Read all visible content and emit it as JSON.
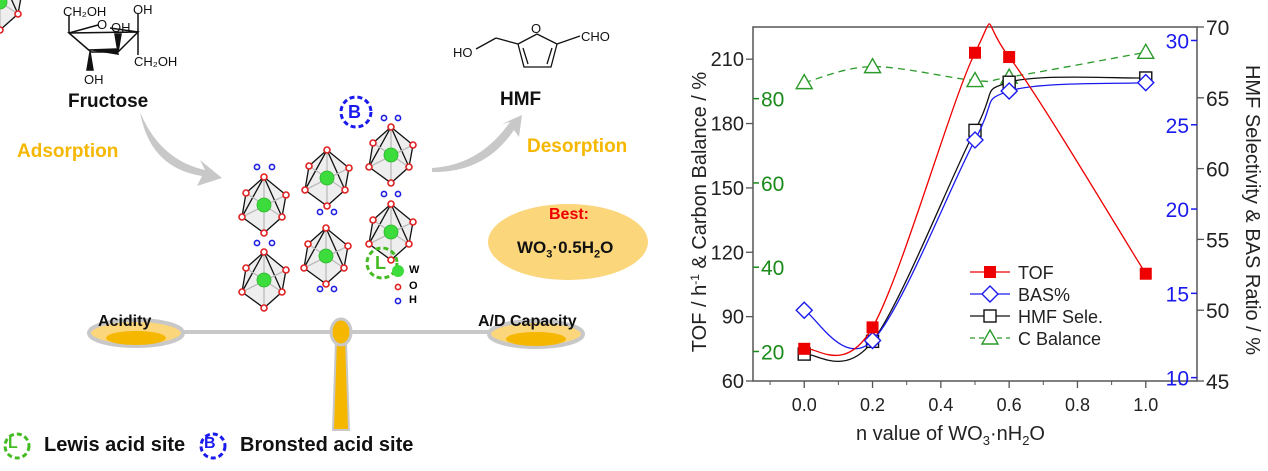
{
  "schematic": {
    "reactant": {
      "name": "Fructose",
      "groups": [
        "CH2OH",
        "O",
        "OH",
        "OH",
        "CH2OH",
        "OH"
      ]
    },
    "product": {
      "name": "HMF",
      "groups": [
        "HO",
        "O",
        "CHO"
      ]
    },
    "step_left": "Adsorption",
    "step_right": "Desorption",
    "best_title": "Best:",
    "best_formula": "WO3·0.5H2O",
    "atom_legend": [
      {
        "symbol": "W",
        "color": "#3ddc3d"
      },
      {
        "symbol": "O",
        "color": "#e02020"
      },
      {
        "symbol": "H",
        "color": "#2020e0"
      }
    ],
    "site_b_letter": "B",
    "site_l_letter": "L",
    "balance_left": "Acidity",
    "balance_right": "A/D Capacity",
    "legend": [
      {
        "letter": "L",
        "label": "Lewis acid site",
        "color": "#44bb22"
      },
      {
        "letter": "B",
        "label": "Bronsted acid site",
        "color": "#1a1aee"
      }
    ],
    "colors": {
      "yellow": "#f5b700",
      "pan": "#fbd67a",
      "gray": "#c8c8c8",
      "red": "#ee0000"
    }
  },
  "chart_data": {
    "type": "line",
    "title": "",
    "xlabel": "n value of WO3·nH2O",
    "ylabel": "TOF / h-1 & Carbon Balance / %",
    "ylabel_right": "HMF Selectivity & BAS Ratio / %",
    "x": [
      0.0,
      0.2,
      0.5,
      0.6,
      1.0
    ],
    "xlim": [
      -0.15,
      1.15
    ],
    "xticks": [
      "0.0",
      "0.2",
      "0.4",
      "0.6",
      "0.8",
      "1.0"
    ],
    "axes": {
      "left_black": {
        "range": [
          60,
          225
        ],
        "ticks": [
          "60",
          "90",
          "120",
          "150",
          "180",
          "210"
        ]
      },
      "left_green": {
        "range": [
          13,
          97
        ],
        "ticks": [
          "20",
          "40",
          "60",
          "80"
        ],
        "color": "#1a8a1a"
      },
      "right_blue": {
        "range": [
          9.8,
          30.8
        ],
        "ticks": [
          "10",
          "15",
          "20",
          "25",
          "30"
        ],
        "color": "#1a1aee"
      },
      "right_black": {
        "range": [
          45,
          70
        ],
        "ticks": [
          "45",
          "50",
          "55",
          "60",
          "65",
          "70"
        ]
      }
    },
    "series": [
      {
        "name": "TOF",
        "axis": "left_black",
        "color": "#ee0000",
        "marker": "filled-square",
        "values": [
          75,
          85,
          213,
          211,
          110
        ]
      },
      {
        "name": "BAS%",
        "axis": "right_blue",
        "color": "#1a1aee",
        "marker": "open-diamond",
        "values": [
          14.0,
          12.2,
          24.1,
          27.0,
          27.5
        ]
      },
      {
        "name": "HMF Sele.",
        "axis": "right_black",
        "color": "#111111",
        "marker": "open-square",
        "values": [
          46.9,
          47.8,
          62.7,
          66.1,
          66.4
        ]
      },
      {
        "name": "C Balance",
        "axis": "left_green",
        "color": "#2a9a2a",
        "marker": "open-triangle",
        "line": "dashed",
        "values": [
          83.8,
          87.6,
          84.3,
          85.1,
          91.0
        ]
      }
    ],
    "legend_position": "lower-right-inside",
    "grid": false
  }
}
